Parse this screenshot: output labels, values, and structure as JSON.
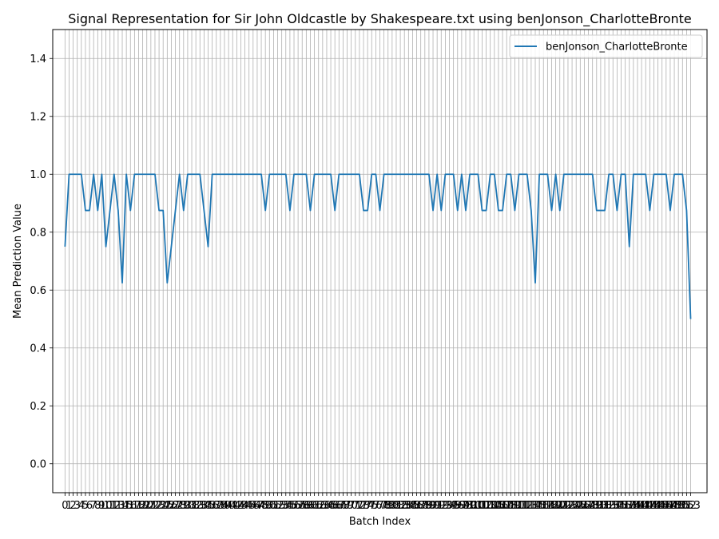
{
  "chart_data": {
    "type": "line",
    "title": "Signal Representation for Sir John Oldcastle by Shakespeare.txt using benJonson_CharlotteBronte",
    "xlabel": "Batch Index",
    "ylabel": "Mean Prediction Value",
    "xlim": [
      -3,
      157
    ],
    "ylim": [
      -0.1,
      1.5
    ],
    "yticks": [
      0.0,
      0.2,
      0.4,
      0.6,
      0.8,
      1.0,
      1.2,
      1.4
    ],
    "ytick_labels": [
      "0.0",
      "0.2",
      "0.4",
      "0.6",
      "0.8",
      "1.0",
      "1.2",
      "1.4"
    ],
    "x_tick_count": 154,
    "x_tick_start": 0,
    "grid": true,
    "legend_position": "top-right",
    "colors": {
      "series": "#1f77b4",
      "grid": "#b0b0b0"
    },
    "series": [
      {
        "name": "benJonson_CharlotteBronte",
        "values": [
          0.75,
          1.0,
          1.0,
          1.0,
          1.0,
          0.875,
          0.875,
          1.0,
          0.875,
          1.0,
          0.75,
          0.875,
          1.0,
          0.875,
          0.625,
          1.0,
          0.875,
          1.0,
          1.0,
          1.0,
          1.0,
          1.0,
          1.0,
          0.875,
          0.875,
          0.625,
          0.75,
          0.875,
          1.0,
          0.875,
          1.0,
          1.0,
          1.0,
          1.0,
          0.875,
          0.75,
          1.0,
          1.0,
          1.0,
          1.0,
          1.0,
          1.0,
          1.0,
          1.0,
          1.0,
          1.0,
          1.0,
          1.0,
          1.0,
          0.875,
          1.0,
          1.0,
          1.0,
          1.0,
          1.0,
          0.875,
          1.0,
          1.0,
          1.0,
          1.0,
          0.875,
          1.0,
          1.0,
          1.0,
          1.0,
          1.0,
          0.875,
          1.0,
          1.0,
          1.0,
          1.0,
          1.0,
          1.0,
          0.875,
          0.875,
          1.0,
          1.0,
          0.875,
          1.0,
          1.0,
          1.0,
          1.0,
          1.0,
          1.0,
          1.0,
          1.0,
          1.0,
          1.0,
          1.0,
          1.0,
          0.875,
          1.0,
          0.875,
          1.0,
          1.0,
          1.0,
          0.875,
          1.0,
          0.875,
          1.0,
          1.0,
          1.0,
          0.875,
          0.875,
          1.0,
          1.0,
          0.875,
          0.875,
          1.0,
          1.0,
          0.875,
          1.0,
          1.0,
          1.0,
          0.875,
          0.625,
          1.0,
          1.0,
          1.0,
          0.875,
          1.0,
          0.875,
          1.0,
          1.0,
          1.0,
          1.0,
          1.0,
          1.0,
          1.0,
          1.0,
          0.875,
          0.875,
          0.875,
          1.0,
          1.0,
          0.875,
          1.0,
          1.0,
          0.75,
          1.0,
          1.0,
          1.0,
          1.0,
          0.875,
          1.0,
          1.0,
          1.0,
          1.0,
          0.875,
          1.0,
          1.0,
          1.0,
          0.875,
          0.5
        ]
      }
    ]
  }
}
